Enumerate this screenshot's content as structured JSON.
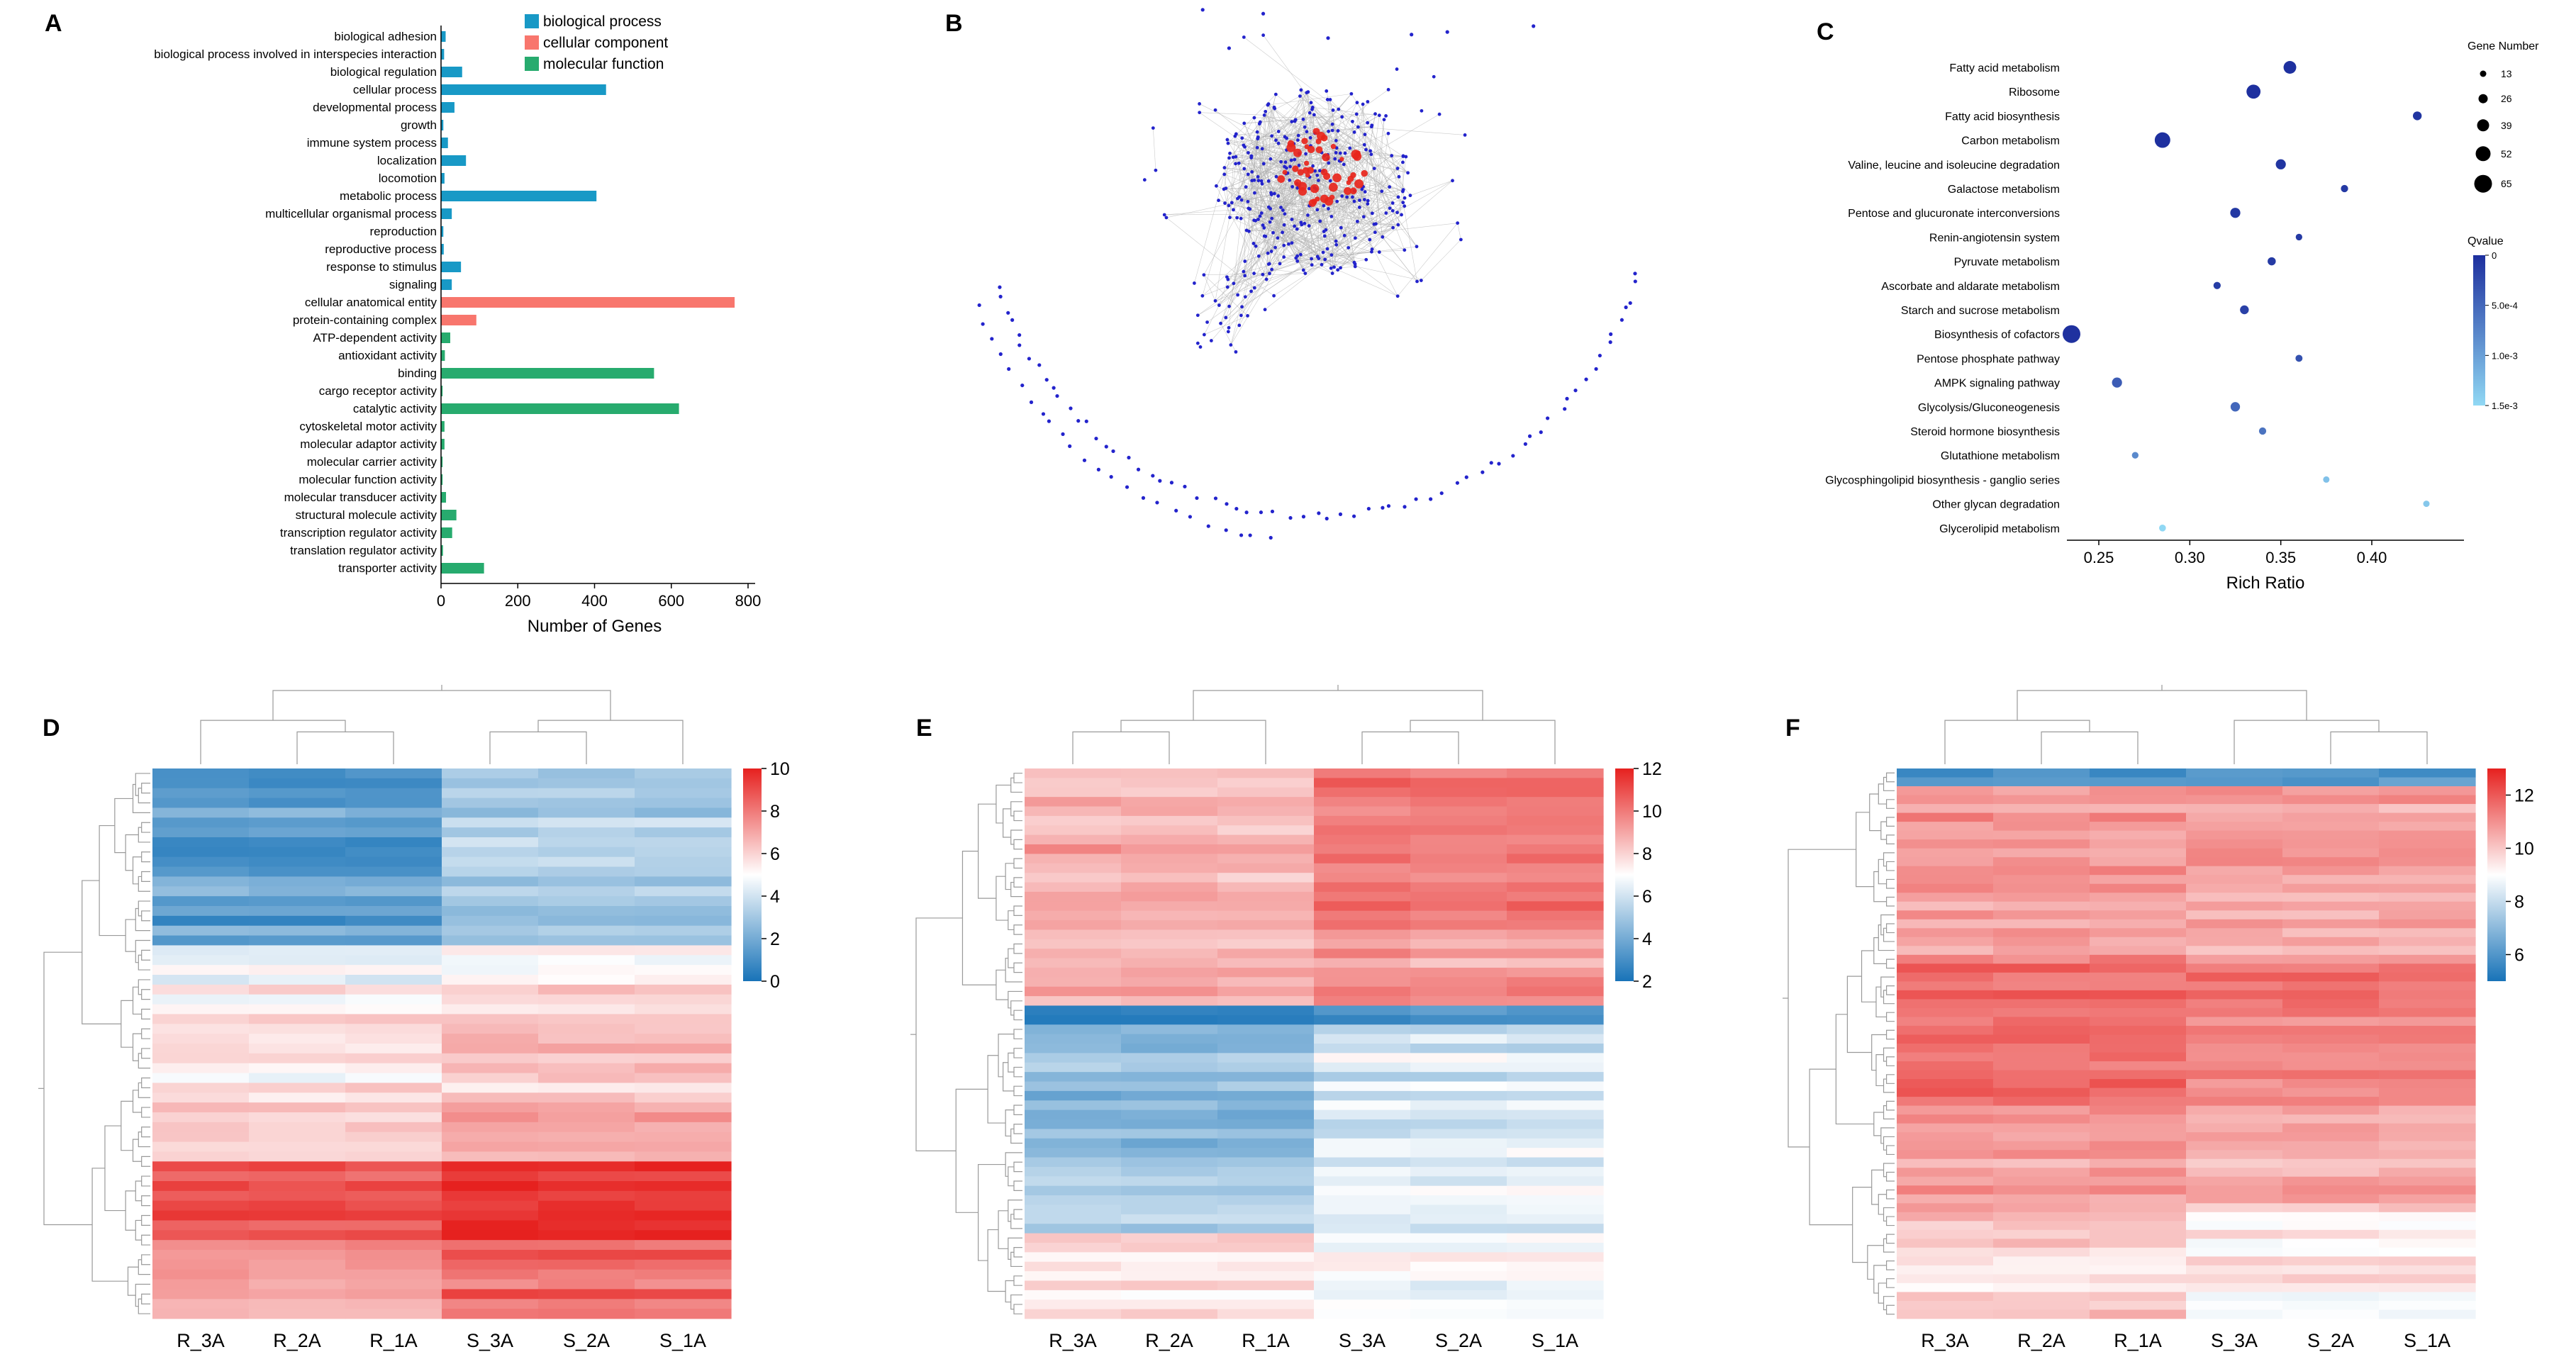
{
  "panels": {
    "A": {
      "label": "A"
    },
    "B": {
      "label": "B"
    },
    "C": {
      "label": "C"
    },
    "D": {
      "label": "D"
    },
    "E": {
      "label": "E"
    },
    "F": {
      "label": "F"
    }
  },
  "chart_data": [
    {
      "panel": "A",
      "type": "bar",
      "orientation": "horizontal",
      "xlabel": "Number of Genes",
      "xlim": [
        0,
        800
      ],
      "xticks": [
        0,
        200,
        400,
        600,
        800
      ],
      "legend_position": "top-right",
      "legend": [
        {
          "label": "biological process",
          "color": "#1899c6"
        },
        {
          "label": "cellular component",
          "color": "#f8766d"
        },
        {
          "label": "molecular function",
          "color": "#27ab6e"
        }
      ],
      "bars": [
        {
          "category": "biological adhesion",
          "value": 12,
          "group": 0
        },
        {
          "category": "biological process involved in interspecies interaction",
          "value": 8,
          "group": 0
        },
        {
          "category": "biological regulation",
          "value": 55,
          "group": 0
        },
        {
          "category": "cellular process",
          "value": 430,
          "group": 0
        },
        {
          "category": "developmental process",
          "value": 35,
          "group": 0
        },
        {
          "category": "growth",
          "value": 6,
          "group": 0
        },
        {
          "category": "immune system process",
          "value": 18,
          "group": 0
        },
        {
          "category": "localization",
          "value": 65,
          "group": 0
        },
        {
          "category": "locomotion",
          "value": 9,
          "group": 0
        },
        {
          "category": "metabolic process",
          "value": 405,
          "group": 0
        },
        {
          "category": "multicellular organismal process",
          "value": 28,
          "group": 0
        },
        {
          "category": "reproduction",
          "value": 6,
          "group": 0
        },
        {
          "category": "reproductive process",
          "value": 7,
          "group": 0
        },
        {
          "category": "response to stimulus",
          "value": 52,
          "group": 0
        },
        {
          "category": "signaling",
          "value": 28,
          "group": 0
        },
        {
          "category": "cellular anatomical entity",
          "value": 765,
          "group": 1
        },
        {
          "category": "protein-containing complex",
          "value": 92,
          "group": 1
        },
        {
          "category": "ATP-dependent activity",
          "value": 24,
          "group": 2
        },
        {
          "category": "antioxidant activity",
          "value": 10,
          "group": 2
        },
        {
          "category": "binding",
          "value": 555,
          "group": 2
        },
        {
          "category": "cargo receptor activity",
          "value": 4,
          "group": 2
        },
        {
          "category": "catalytic activity",
          "value": 620,
          "group": 2
        },
        {
          "category": "cytoskeletal motor activity",
          "value": 9,
          "group": 2
        },
        {
          "category": "molecular adaptor activity",
          "value": 9,
          "group": 2
        },
        {
          "category": "molecular carrier activity",
          "value": 4,
          "group": 2
        },
        {
          "category": "molecular function activity",
          "value": 4,
          "group": 2
        },
        {
          "category": "molecular transducer activity",
          "value": 13,
          "group": 2
        },
        {
          "category": "structural molecule activity",
          "value": 40,
          "group": 2
        },
        {
          "category": "transcription regulator activity",
          "value": 29,
          "group": 2
        },
        {
          "category": "translation regulator activity",
          "value": 5,
          "group": 2
        },
        {
          "category": "transporter activity",
          "value": 112,
          "group": 2
        }
      ]
    },
    {
      "panel": "B",
      "type": "network",
      "description": "Protein-protein interaction network: dense central cluster of blue nodes with red hub nodes in the center, gray edges, and an arc of unconnected blue nodes below",
      "colors": {
        "node": "#2323cc",
        "hub": "#e8261c",
        "edge": "#b0b0b0"
      },
      "render": {
        "seed": 9,
        "cluster_nodes": 300,
        "tail_nodes": 45,
        "satellite_nodes": 28,
        "hub_nodes": 46,
        "edges": 820,
        "arc1_nodes": 66,
        "arc2_nodes": 24,
        "stray_nodes": 7
      }
    },
    {
      "panel": "C",
      "type": "scatter",
      "xlabel": "Rich Ratio",
      "xlim": [
        0.22,
        0.45
      ],
      "xticks": [
        0.25,
        0.3,
        0.35,
        0.4
      ],
      "size_legend": {
        "title": "Gene Number",
        "values": [
          13,
          26,
          39,
          52,
          65
        ]
      },
      "color_legend": {
        "title": "Qvalue",
        "min": 0,
        "max": 0.0015,
        "tick_labels": [
          "0",
          "5.0e-4",
          "1.0e-3",
          "1.5e-3"
        ],
        "dark_color": "#1d2f9e",
        "light_color": "#90d8f4"
      },
      "points": [
        {
          "pathway": "Fatty acid metabolism",
          "rich_ratio": 0.355,
          "gene_number": 42,
          "qvalue": 1e-05
        },
        {
          "pathway": "Ribosome",
          "rich_ratio": 0.335,
          "gene_number": 48,
          "qvalue": 1e-05
        },
        {
          "pathway": "Fatty acid biosynthesis",
          "rich_ratio": 0.425,
          "gene_number": 24,
          "qvalue": 5e-05
        },
        {
          "pathway": "Carbon metabolism",
          "rich_ratio": 0.285,
          "gene_number": 55,
          "qvalue": 1e-05
        },
        {
          "pathway": "Valine, leucine and isoleucine degradation",
          "rich_ratio": 0.35,
          "gene_number": 30,
          "qvalue": 5e-05
        },
        {
          "pathway": "Galactose metabolism",
          "rich_ratio": 0.385,
          "gene_number": 17,
          "qvalue": 0.0001
        },
        {
          "pathway": "Pentose and glucuronate interconversions",
          "rich_ratio": 0.325,
          "gene_number": 30,
          "qvalue": 8e-05
        },
        {
          "pathway": "Renin-angiotensin system",
          "rich_ratio": 0.36,
          "gene_number": 14,
          "qvalue": 0.0001
        },
        {
          "pathway": "Pyruvate metabolism",
          "rich_ratio": 0.345,
          "gene_number": 21,
          "qvalue": 0.0001
        },
        {
          "pathway": "Ascorbate and aldarate metabolism",
          "rich_ratio": 0.315,
          "gene_number": 17,
          "qvalue": 0.00012
        },
        {
          "pathway": "Starch and sucrose metabolism",
          "rich_ratio": 0.33,
          "gene_number": 24,
          "qvalue": 0.00015
        },
        {
          "pathway": "Biosynthesis of cofactors",
          "rich_ratio": 0.235,
          "gene_number": 65,
          "qvalue": 2e-05
        },
        {
          "pathway": "Pentose phosphate pathway",
          "rich_ratio": 0.36,
          "gene_number": 16,
          "qvalue": 0.0003
        },
        {
          "pathway": "AMPK signaling pathway",
          "rich_ratio": 0.26,
          "gene_number": 30,
          "qvalue": 0.0004
        },
        {
          "pathway": "Glycolysis/Gluconeogenesis",
          "rich_ratio": 0.325,
          "gene_number": 27,
          "qvalue": 0.0005
        },
        {
          "pathway": "Steroid hormone biosynthesis",
          "rich_ratio": 0.34,
          "gene_number": 17,
          "qvalue": 0.0006
        },
        {
          "pathway": "Glutathione metabolism",
          "rich_ratio": 0.27,
          "gene_number": 14,
          "qvalue": 0.0008
        },
        {
          "pathway": "Glycosphingolipid biosynthesis - ganglio series",
          "rich_ratio": 0.375,
          "gene_number": 13,
          "qvalue": 0.0013
        },
        {
          "pathway": "Other glycan degradation",
          "rich_ratio": 0.43,
          "gene_number": 13,
          "qvalue": 0.00135
        },
        {
          "pathway": "Glycerolipid metabolism",
          "rich_ratio": 0.285,
          "gene_number": 15,
          "qvalue": 0.0015
        }
      ]
    },
    {
      "panel": "D",
      "type": "heatmap",
      "columns": [
        "R_3A",
        "R_2A",
        "R_1A",
        "S_3A",
        "S_2A",
        "S_1A"
      ],
      "colorbar": {
        "min": 0,
        "max": 10,
        "ticks": [
          10,
          8,
          6,
          4,
          2,
          0
        ],
        "low": "#1873b8",
        "mid": "#ffffff",
        "high": "#e6211f"
      },
      "row_bands": [
        {
          "rows": 18,
          "R": 1.6,
          "S": 3.4,
          "jitter": 0.9
        },
        {
          "rows": 4,
          "R": 4.6,
          "S": 5.4,
          "jitter": 0.7
        },
        {
          "rows": 12,
          "R": 5.4,
          "S": 6.2,
          "jitter": 0.8
        },
        {
          "rows": 6,
          "R": 5.8,
          "S": 6.9,
          "jitter": 0.7
        },
        {
          "rows": 8,
          "R": 8.8,
          "S": 9.6,
          "jitter": 0.5
        },
        {
          "rows": 8,
          "R": 7.4,
          "S": 8.4,
          "jitter": 0.8
        }
      ],
      "render": {
        "seed": 11,
        "col_tree": [
          [
            0,
            [
              1,
              2
            ]
          ],
          [
            [
              3,
              4
            ],
            5
          ]
        ]
      }
    },
    {
      "panel": "E",
      "type": "heatmap",
      "columns": [
        "R_3A",
        "R_2A",
        "R_1A",
        "S_3A",
        "S_2A",
        "S_1A"
      ],
      "colorbar": {
        "min": 2,
        "max": 12,
        "ticks": [
          12,
          10,
          8,
          6,
          4,
          2
        ],
        "low": "#1873b8",
        "mid": "#ffffff",
        "high": "#e6211f"
      },
      "row_bands": [
        {
          "rows": 16,
          "R": 8.8,
          "S": 10.0,
          "jitter": 0.8
        },
        {
          "rows": 9,
          "R": 8.4,
          "S": 9.2,
          "jitter": 0.9
        },
        {
          "rows": 2,
          "R": 2.8,
          "S": 3.2,
          "jitter": 0.4
        },
        {
          "rows": 14,
          "R": 4.6,
          "S": 6.2,
          "jitter": 0.8
        },
        {
          "rows": 8,
          "R": 5.4,
          "S": 6.5,
          "jitter": 0.7
        },
        {
          "rows": 9,
          "R": 7.6,
          "S": 7.0,
          "jitter": 0.8
        }
      ],
      "render": {
        "seed": 23,
        "col_tree": [
          [
            [
              0,
              1
            ],
            2
          ],
          [
            [
              3,
              4
            ],
            5
          ]
        ]
      }
    },
    {
      "panel": "F",
      "type": "heatmap",
      "columns": [
        "R_3A",
        "R_2A",
        "R_1A",
        "S_3A",
        "S_2A",
        "S_1A"
      ],
      "colorbar": {
        "min": 5,
        "max": 13,
        "ticks": [
          12,
          10,
          8,
          6
        ],
        "low": "#1873b8",
        "mid": "#ffffff",
        "high": "#e6211f"
      },
      "row_bands": [
        {
          "rows": 2,
          "R": 6.0,
          "S": 6.2,
          "jitter": 0.3
        },
        {
          "rows": 20,
          "R": 10.8,
          "S": 10.6,
          "jitter": 0.5
        },
        {
          "rows": 16,
          "R": 11.6,
          "S": 11.3,
          "jitter": 0.4
        },
        {
          "rows": 12,
          "R": 10.7,
          "S": 10.5,
          "jitter": 0.5
        },
        {
          "rows": 12,
          "R": 9.7,
          "S": 9.3,
          "jitter": 0.6
        }
      ],
      "render": {
        "seed": 31,
        "col_tree": [
          [
            0,
            [
              1,
              2
            ]
          ],
          [
            3,
            [
              4,
              5
            ]
          ]
        ]
      }
    }
  ]
}
